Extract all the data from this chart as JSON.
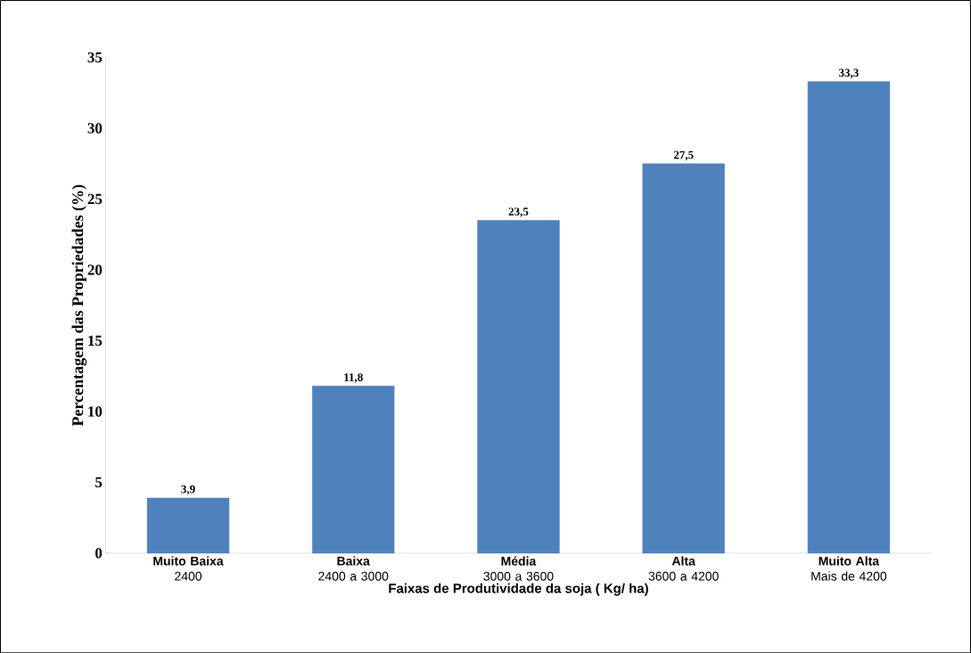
{
  "chart_data": {
    "type": "bar",
    "xlabel": "Faixas de Produtividade da soja ( Kg/ ha)",
    "ylabel": "Percentagem das Propriedades (%)",
    "categories": [
      "**Muito Baixa**\n2400",
      "**Baixa**\n2400 a 3000",
      "**Média**\n3000 a 3600",
      "**Alta**\n3600 a 4200",
      "**Muito Alta**\nMais de 4200"
    ],
    "values": [
      3.9,
      11.8,
      23.5,
      27.5,
      33.3
    ],
    "value_labels": [
      "3,9",
      "11,8",
      "23,5",
      "27,5",
      "33,3"
    ],
    "color": "#4f81bd",
    "ylim": [
      0,
      35
    ],
    "yticks": [
      0,
      5,
      10,
      15,
      20,
      25,
      30,
      35
    ],
    "grid": false
  }
}
